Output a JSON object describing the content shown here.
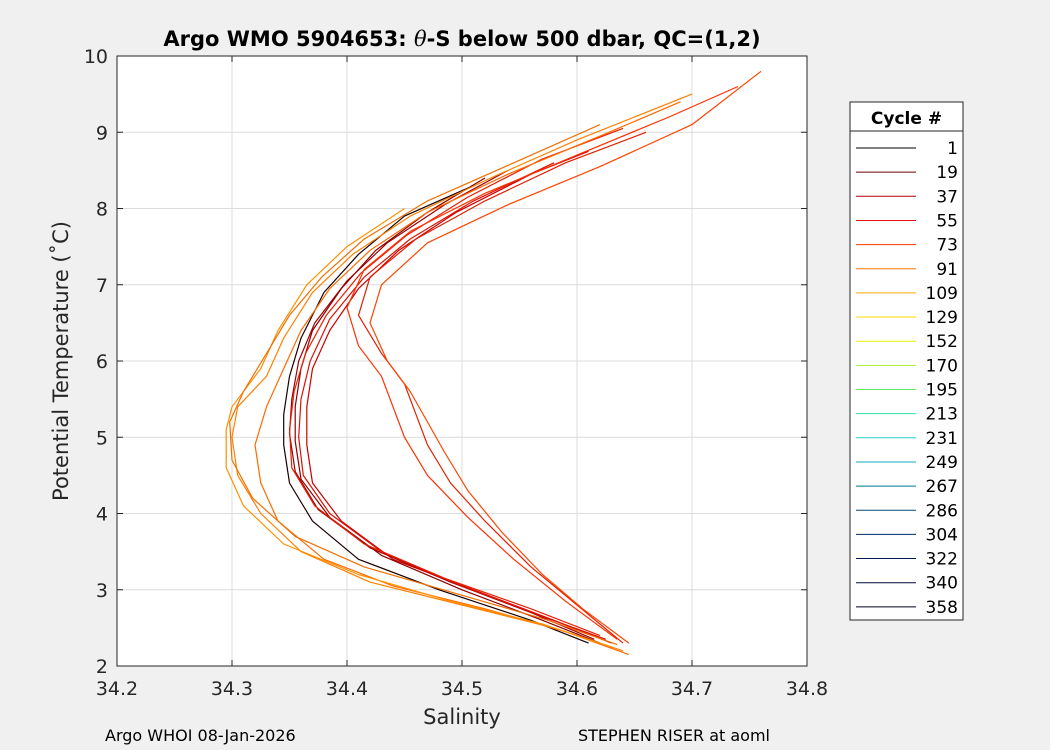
{
  "chart_data": {
    "type": "line",
    "title_prefix": "Argo WMO 5904653: ",
    "title_theta": "θ",
    "title_suffix": "-S below 500 dbar,  QC=(1,2)",
    "xlabel": "Salinity",
    "ylabel": "Potential Temperature (˚C)",
    "xlim": [
      34.2,
      34.8
    ],
    "ylim": [
      2,
      10
    ],
    "xticks": [
      34.2,
      34.3,
      34.4,
      34.5,
      34.6,
      34.7,
      34.8
    ],
    "xtick_labels": [
      "34.2",
      "34.3",
      "34.4",
      "34.5",
      "34.6",
      "34.7",
      "34.8"
    ],
    "yticks": [
      2,
      3,
      4,
      5,
      6,
      7,
      8,
      9,
      10
    ],
    "ytick_labels": [
      "2",
      "3",
      "4",
      "5",
      "6",
      "7",
      "8",
      "9",
      "10"
    ],
    "grid": true,
    "legend": {
      "title": "Cycle #",
      "placement": "outside-right",
      "entries": [
        {
          "label": "1",
          "color": "#000000"
        },
        {
          "label": "19",
          "color": "#6b0000"
        },
        {
          "label": "37",
          "color": "#b00000"
        },
        {
          "label": "55",
          "color": "#e01010"
        },
        {
          "label": "73",
          "color": "#ff3a00"
        },
        {
          "label": "91",
          "color": "#ff7800"
        },
        {
          "label": "109",
          "color": "#ffa800"
        },
        {
          "label": "129",
          "color": "#ffd800"
        },
        {
          "label": "152",
          "color": "#e8f000"
        },
        {
          "label": "170",
          "color": "#a8f030"
        },
        {
          "label": "195",
          "color": "#60e860"
        },
        {
          "label": "213",
          "color": "#30e0a0"
        },
        {
          "label": "231",
          "color": "#20d0c8"
        },
        {
          "label": "249",
          "color": "#10a8c0"
        },
        {
          "label": "267",
          "color": "#007890"
        },
        {
          "label": "286",
          "color": "#004878"
        },
        {
          "label": "304",
          "color": "#002a68"
        },
        {
          "label": "322",
          "color": "#001450"
        },
        {
          "label": "340",
          "color": "#000838"
        },
        {
          "label": "358",
          "color": "#000020"
        }
      ]
    },
    "series": [
      {
        "name": "main-black",
        "color": "#1a0000",
        "points": [
          [
            34.61,
            2.3
          ],
          [
            34.56,
            2.6
          ],
          [
            34.48,
            3.0
          ],
          [
            34.41,
            3.4
          ],
          [
            34.37,
            3.9
          ],
          [
            34.35,
            4.4
          ],
          [
            34.345,
            4.9
          ],
          [
            34.345,
            5.3
          ],
          [
            34.35,
            5.8
          ],
          [
            34.36,
            6.3
          ],
          [
            34.38,
            6.9
          ],
          [
            34.41,
            7.4
          ],
          [
            34.45,
            7.9
          ],
          [
            34.51,
            8.3
          ]
        ]
      },
      {
        "name": "main-darkred-1",
        "color": "#8b0000",
        "points": [
          [
            34.62,
            2.3
          ],
          [
            34.57,
            2.6
          ],
          [
            34.5,
            3.0
          ],
          [
            34.43,
            3.45
          ],
          [
            34.385,
            3.95
          ],
          [
            34.36,
            4.45
          ],
          [
            34.355,
            4.95
          ],
          [
            34.355,
            5.4
          ],
          [
            34.36,
            5.9
          ],
          [
            34.37,
            6.4
          ],
          [
            34.395,
            6.95
          ],
          [
            34.425,
            7.45
          ],
          [
            34.47,
            7.95
          ],
          [
            34.52,
            8.4
          ]
        ]
      },
      {
        "name": "main-darkred-2",
        "color": "#a00000",
        "points": [
          [
            34.615,
            2.35
          ],
          [
            34.56,
            2.7
          ],
          [
            34.49,
            3.1
          ],
          [
            34.42,
            3.55
          ],
          [
            34.375,
            4.05
          ],
          [
            34.355,
            4.55
          ],
          [
            34.35,
            5.05
          ],
          [
            34.352,
            5.5
          ],
          [
            34.358,
            6.0
          ],
          [
            34.372,
            6.5
          ],
          [
            34.4,
            7.05
          ],
          [
            34.435,
            7.55
          ],
          [
            34.485,
            8.05
          ],
          [
            34.54,
            8.5
          ]
        ]
      },
      {
        "name": "main-red-1",
        "color": "#cc0000",
        "points": [
          [
            34.63,
            2.3
          ],
          [
            34.58,
            2.6
          ],
          [
            34.51,
            3.0
          ],
          [
            34.44,
            3.4
          ],
          [
            34.395,
            3.9
          ],
          [
            34.37,
            4.4
          ],
          [
            34.365,
            4.9
          ],
          [
            34.365,
            5.4
          ],
          [
            34.37,
            5.9
          ],
          [
            34.385,
            6.4
          ],
          [
            34.41,
            6.95
          ],
          [
            34.445,
            7.45
          ],
          [
            34.495,
            7.95
          ],
          [
            34.56,
            8.45
          ],
          [
            34.61,
            8.75
          ]
        ]
      },
      {
        "name": "main-red-2",
        "color": "#dd1100",
        "points": [
          [
            34.625,
            2.35
          ],
          [
            34.57,
            2.65
          ],
          [
            34.5,
            3.05
          ],
          [
            34.43,
            3.5
          ],
          [
            34.385,
            4.0
          ],
          [
            34.362,
            4.5
          ],
          [
            34.358,
            5.0
          ],
          [
            34.36,
            5.5
          ],
          [
            34.368,
            6.0
          ],
          [
            34.385,
            6.55
          ],
          [
            34.415,
            7.1
          ],
          [
            34.455,
            7.6
          ],
          [
            34.51,
            8.1
          ],
          [
            34.58,
            8.6
          ]
        ]
      },
      {
        "name": "main-red-3",
        "color": "#e81e00",
        "points": [
          [
            34.62,
            2.4
          ],
          [
            34.56,
            2.75
          ],
          [
            34.485,
            3.15
          ],
          [
            34.415,
            3.6
          ],
          [
            34.372,
            4.1
          ],
          [
            34.352,
            4.6
          ],
          [
            34.35,
            5.1
          ],
          [
            34.354,
            5.6
          ],
          [
            34.364,
            6.1
          ],
          [
            34.382,
            6.6
          ],
          [
            34.412,
            7.15
          ],
          [
            34.452,
            7.65
          ],
          [
            34.505,
            8.15
          ],
          [
            34.57,
            8.65
          ],
          [
            34.64,
            9.05
          ]
        ]
      },
      {
        "name": "wide-red-1",
        "color": "#e02000",
        "points": [
          [
            34.64,
            2.3
          ],
          [
            34.6,
            2.8
          ],
          [
            34.56,
            3.3
          ],
          [
            34.52,
            3.9
          ],
          [
            34.49,
            4.4
          ],
          [
            34.47,
            4.9
          ],
          [
            34.46,
            5.3
          ],
          [
            34.45,
            5.7
          ],
          [
            34.43,
            6.1
          ],
          [
            34.41,
            6.6
          ],
          [
            34.42,
            7.1
          ],
          [
            34.46,
            7.6
          ],
          [
            34.52,
            8.1
          ],
          [
            34.59,
            8.6
          ],
          [
            34.66,
            9.0
          ]
        ]
      },
      {
        "name": "wide-red-2",
        "color": "#ff3000",
        "points": [
          [
            34.635,
            2.35
          ],
          [
            34.59,
            2.85
          ],
          [
            34.545,
            3.4
          ],
          [
            34.505,
            3.95
          ],
          [
            34.47,
            4.5
          ],
          [
            34.45,
            5.0
          ],
          [
            34.44,
            5.4
          ],
          [
            34.43,
            5.8
          ],
          [
            34.41,
            6.2
          ],
          [
            34.4,
            6.7
          ],
          [
            34.415,
            7.2
          ],
          [
            34.455,
            7.7
          ],
          [
            34.52,
            8.2
          ],
          [
            34.6,
            8.7
          ],
          [
            34.68,
            9.2
          ],
          [
            34.74,
            9.6
          ]
        ]
      },
      {
        "name": "wide-red-3",
        "color": "#ff4400",
        "points": [
          [
            34.645,
            2.3
          ],
          [
            34.605,
            2.75
          ],
          [
            34.57,
            3.2
          ],
          [
            34.535,
            3.75
          ],
          [
            34.505,
            4.3
          ],
          [
            34.485,
            4.8
          ],
          [
            34.47,
            5.2
          ],
          [
            34.455,
            5.6
          ],
          [
            34.435,
            6.0
          ],
          [
            34.42,
            6.5
          ],
          [
            34.43,
            7.0
          ],
          [
            34.47,
            7.55
          ],
          [
            34.54,
            8.05
          ],
          [
            34.62,
            8.55
          ],
          [
            34.7,
            9.1
          ],
          [
            34.76,
            9.8
          ]
        ]
      },
      {
        "name": "orange-1",
        "color": "#ff6a00",
        "points": [
          [
            34.645,
            2.15
          ],
          [
            34.59,
            2.45
          ],
          [
            34.52,
            2.75
          ],
          [
            34.44,
            3.05
          ],
          [
            34.38,
            3.4
          ],
          [
            34.34,
            3.9
          ],
          [
            34.325,
            4.4
          ],
          [
            34.32,
            4.9
          ],
          [
            34.33,
            5.4
          ],
          [
            34.345,
            5.9
          ],
          [
            34.36,
            6.4
          ],
          [
            34.385,
            6.95
          ],
          [
            34.42,
            7.45
          ],
          [
            34.47,
            7.95
          ],
          [
            34.54,
            8.45
          ],
          [
            34.62,
            8.95
          ],
          [
            34.69,
            9.4
          ]
        ]
      },
      {
        "name": "orange-2",
        "color": "#ff8000",
        "points": [
          [
            34.64,
            2.2
          ],
          [
            34.58,
            2.5
          ],
          [
            34.5,
            2.8
          ],
          [
            34.42,
            3.1
          ],
          [
            34.36,
            3.5
          ],
          [
            34.325,
            4.0
          ],
          [
            34.305,
            4.5
          ],
          [
            34.3,
            5.0
          ],
          [
            34.305,
            5.4
          ],
          [
            34.33,
            5.8
          ],
          [
            34.345,
            6.3
          ],
          [
            34.37,
            6.9
          ],
          [
            34.405,
            7.4
          ],
          [
            34.455,
            7.9
          ],
          [
            34.525,
            8.4
          ],
          [
            34.6,
            8.9
          ],
          [
            34.7,
            9.5
          ]
        ]
      },
      {
        "name": "orange-3",
        "color": "#ff9000",
        "points": [
          [
            34.63,
            2.25
          ],
          [
            34.57,
            2.55
          ],
          [
            34.49,
            2.85
          ],
          [
            34.41,
            3.2
          ],
          [
            34.345,
            3.6
          ],
          [
            34.31,
            4.1
          ],
          [
            34.295,
            4.6
          ],
          [
            34.295,
            5.1
          ],
          [
            34.3,
            5.4
          ],
          [
            34.325,
            5.9
          ],
          [
            34.34,
            6.4
          ],
          [
            34.365,
            7.0
          ],
          [
            34.4,
            7.5
          ],
          [
            34.45,
            8.0
          ]
        ]
      },
      {
        "name": "orange-4",
        "color": "#f07000",
        "points": [
          [
            34.635,
            2.28
          ],
          [
            34.575,
            2.6
          ],
          [
            34.495,
            2.95
          ],
          [
            34.415,
            3.3
          ],
          [
            34.355,
            3.7
          ],
          [
            34.318,
            4.2
          ],
          [
            34.3,
            4.7
          ],
          [
            34.298,
            5.2
          ],
          [
            34.31,
            5.6
          ],
          [
            34.33,
            6.1
          ],
          [
            34.35,
            6.6
          ],
          [
            34.378,
            7.1
          ],
          [
            34.415,
            7.6
          ],
          [
            34.47,
            8.1
          ],
          [
            34.545,
            8.6
          ],
          [
            34.62,
            9.1
          ]
        ]
      }
    ]
  },
  "footer": {
    "left": "Argo WHOI 08-Jan-2026",
    "right": "STEPHEN RISER at aoml"
  }
}
